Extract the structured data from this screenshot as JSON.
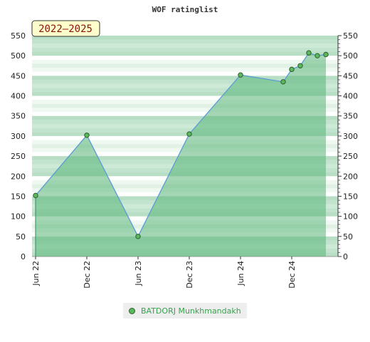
{
  "chart_data": {
    "type": "area",
    "title": "WOF ratinglist",
    "badge": "2022–2025",
    "x": [
      "Jun 22",
      "Dec 22",
      "Jun 23",
      "Dec 23",
      "Jun 24",
      "Nov 24",
      "Dec 24",
      "Jan 25",
      "Feb 25",
      "Mar 25",
      "Apr 25"
    ],
    "x_ticks": [
      "Jun 22",
      "Dec 22",
      "Jun 23",
      "Dec 23",
      "Jun 24",
      "Dec 24"
    ],
    "ylim": [
      0,
      550
    ],
    "y_ticks": [
      0,
      50,
      100,
      150,
      200,
      250,
      300,
      350,
      400,
      450,
      500,
      550
    ],
    "series": [
      {
        "name": "BATDORJ Munkhmandakh",
        "values": [
          152,
          302,
          50,
          305,
          452,
          435,
          466,
          475,
          507,
          500,
          503
        ]
      }
    ],
    "grid": true,
    "legend_position": "bottom-center",
    "colors": {
      "line": "#5b9bd5",
      "marker_fill": "#5cb85c",
      "marker_stroke": "#2d5f2d"
    }
  },
  "legend": {
    "label": "BATDORJ Munkhmandakh"
  }
}
